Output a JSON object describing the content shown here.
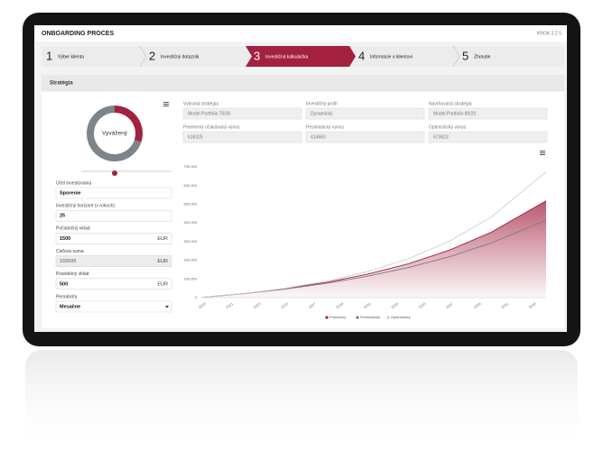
{
  "header": {
    "title": "ONBOARDING PROCES",
    "step_indicator": "KROK 3 Z 5"
  },
  "steps": [
    {
      "number": 1,
      "label": "Výber klienta"
    },
    {
      "number": 2,
      "label": "Investičný dotazník"
    },
    {
      "number": 3,
      "label": "Investičná kalkulačka",
      "active": true
    },
    {
      "number": 4,
      "label": "Informácie o klientovi"
    },
    {
      "number": 5,
      "label": "Zhrnutie"
    }
  ],
  "section_title": "Stratégia",
  "form": {
    "fields": [
      {
        "label": "Účel investovania",
        "value": "Sporenie"
      },
      {
        "label": "Investičný horizont (v rokoch)",
        "value": 25
      },
      {
        "label": "Počiatočný vklad",
        "value": 1500,
        "unit": "EUR"
      },
      {
        "label": "Cieľová suma",
        "value": 155000,
        "unit": "EUR",
        "disabled": true
      },
      {
        "label": "Pravidelný vklad",
        "value": 500,
        "unit": "EUR"
      },
      {
        "label": "Periodicita",
        "value": "Mesačne",
        "select": true
      }
    ]
  },
  "results": [
    {
      "label": "Vybraná stratégia",
      "value": "Model Portfolio 70/30"
    },
    {
      "label": "Investičný profil",
      "value": "Dynamický"
    },
    {
      "label": "Navrhovaná stratégia",
      "value": "Model Portfolio 80/20"
    },
    {
      "label": "Priemerný očakávaný výnos",
      "value": 518325
    },
    {
      "label": "Pesimistický výnos",
      "value": 414660
    },
    {
      "label": "Optimistický výnos",
      "value": 673823
    }
  ],
  "chart_data": [
    {
      "type": "pie",
      "center_label": "Vyvážený",
      "values": [
        30,
        70
      ],
      "colors": [
        "#a3213f",
        "#7b858b"
      ]
    },
    {
      "type": "line",
      "x": [
        2019,
        2022,
        2025,
        2028,
        2031,
        2034,
        2037,
        2040,
        2044
      ],
      "xlim": [
        2019,
        2044
      ],
      "xticks": [
        2019,
        2021,
        2023,
        2025,
        2027,
        2029,
        2031,
        2033,
        2035,
        2037,
        2039,
        2041,
        2043
      ],
      "ylim": [
        0,
        700000
      ],
      "yticks": [
        0,
        {
          "value": 100000,
          "label": "100,000"
        },
        {
          "value": 200000,
          "label": "200,000"
        },
        {
          "value": 300000,
          "label": "300,000"
        },
        {
          "value": 400000,
          "label": "400,000"
        },
        {
          "value": 500000,
          "label": "500,000"
        },
        {
          "value": 600000,
          "label": "600,000"
        },
        {
          "value": 700000,
          "label": "700,000"
        }
      ],
      "grid": false,
      "series": [
        {
          "name": "Priemerný",
          "color": "#a3213f",
          "area": true,
          "values": [
            1500,
            21610,
            47650,
            81390,
            125090,
            181600,
            254880,
            349760,
            518325
          ]
        },
        {
          "name": "Pesimistický",
          "color": "#7b7b7b",
          "values": [
            1500,
            21250,
            45780,
            76250,
            114120,
            161150,
            219580,
            292160,
            414660
          ]
        },
        {
          "name": "Optimistický",
          "color": "#cfcfcf",
          "values": [
            1500,
            22030,
            49890,
            87670,
            138940,
            208490,
            302850,
            430840,
            673823
          ]
        }
      ]
    }
  ]
}
